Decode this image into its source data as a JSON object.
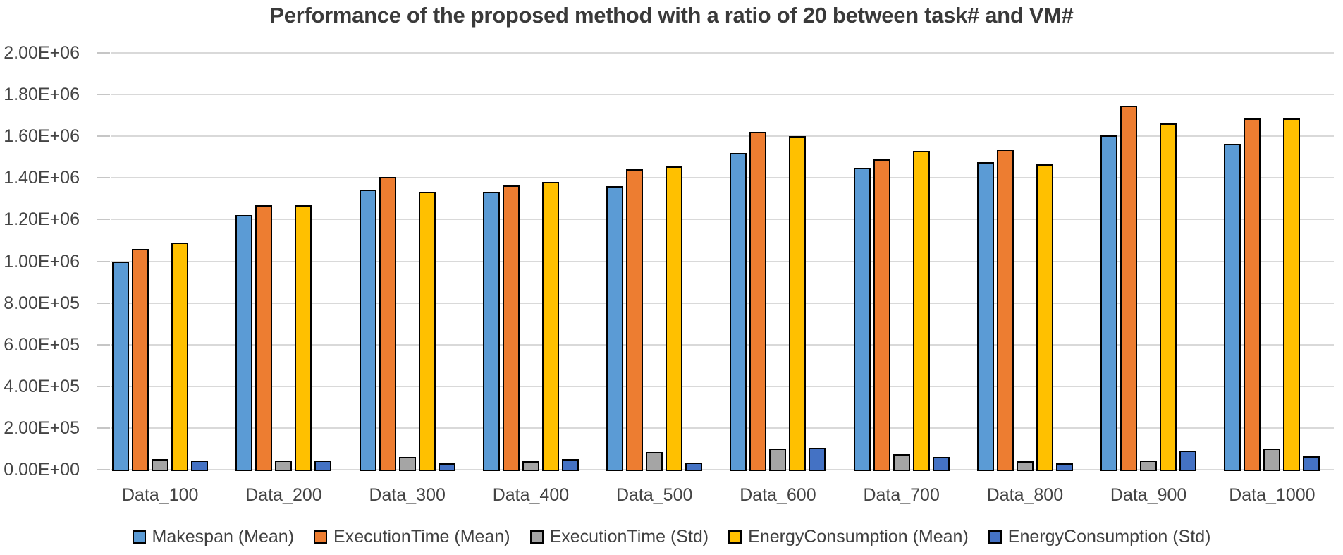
{
  "page": {
    "background": "#FFFFFF"
  },
  "chart_data": {
    "type": "bar",
    "title": "Performance of the proposed method with a ratio of 20 between task# and VM#",
    "categories": [
      "Data_100",
      "Data_200",
      "Data_300",
      "Data_400",
      "Data_500",
      "Data_600",
      "Data_700",
      "Data_800",
      "Data_900",
      "Data_1000"
    ],
    "series": [
      {
        "name": "Makespan (Mean)",
        "color": "#5B9BD5",
        "values": [
          1000000,
          1220000,
          1345000,
          1335000,
          1360000,
          1520000,
          1450000,
          1475000,
          1605000,
          1565000
        ]
      },
      {
        "name": "ExecutionTime (Mean)",
        "color": "#ED7D31",
        "values": [
          1060000,
          1270000,
          1405000,
          1365000,
          1440000,
          1620000,
          1490000,
          1535000,
          1745000,
          1685000
        ]
      },
      {
        "name": "ExecutionTime (Std)",
        "color": "#A5A5A5",
        "values": [
          50000,
          45000,
          60000,
          40000,
          85000,
          100000,
          75000,
          40000,
          45000,
          100000
        ]
      },
      {
        "name": "EnergyConsumption (Mean)",
        "color": "#FFC000",
        "values": [
          1090000,
          1270000,
          1335000,
          1380000,
          1455000,
          1600000,
          1530000,
          1465000,
          1660000,
          1685000
        ]
      },
      {
        "name": "EnergyConsumption (Std)",
        "color": "#4472C4",
        "values": [
          45000,
          45000,
          30000,
          50000,
          35000,
          105000,
          60000,
          30000,
          90000,
          65000
        ]
      }
    ],
    "y_ticks": [
      "2.00E+06",
      "1.80E+06",
      "1.60E+06",
      "1.40E+06",
      "1.20E+06",
      "1.00E+06",
      "8.00E+05",
      "6.00E+05",
      "4.00E+05",
      "2.00E+05",
      "0.00E+00"
    ],
    "ylim": [
      0,
      2000000
    ],
    "xlabel": "",
    "ylabel": "",
    "grid": "horizontal",
    "legend_position": "bottom",
    "gridline_color": "#D9D9D9",
    "text_color": "#404040",
    "bar_outline_color": "#000000"
  }
}
